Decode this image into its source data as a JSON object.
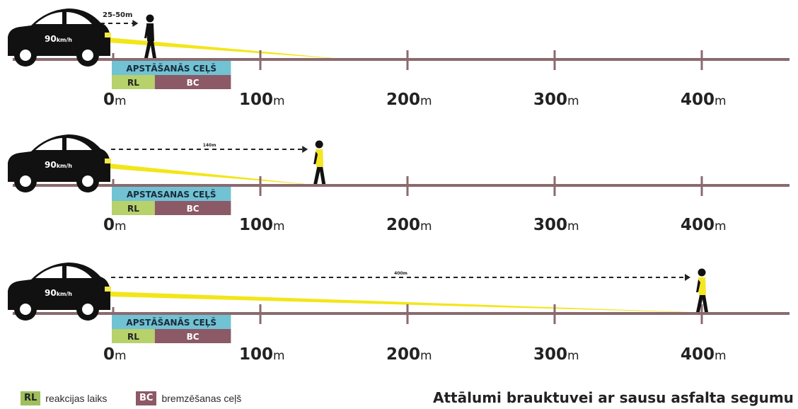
{
  "scenarios": [
    {
      "speed_value": "90",
      "speed_unit": "km/h",
      "visibility_label": "25-50m",
      "visibility_m": [
        25,
        50
      ],
      "pedestrian_at_m": 25,
      "pedestrian_vest": false,
      "stop_label": "APSTĀŠANĀS CEĻŠ",
      "rl_label": "RL",
      "bc_label": "BC"
    },
    {
      "speed_value": "90",
      "speed_unit": "km/h",
      "visibility_label": "140m",
      "visibility_m": 140,
      "pedestrian_at_m": 140,
      "pedestrian_vest": true,
      "stop_label": "APSTASANAS CEĻŠ",
      "rl_label": "RL",
      "bc_label": "BC"
    },
    {
      "speed_value": "90",
      "speed_unit": "km/h",
      "visibility_label": "400m",
      "visibility_m": 400,
      "pedestrian_at_m": 400,
      "pedestrian_vest": true,
      "stop_label": "APSTĀŠANĀS CEĻŠ",
      "rl_label": "RL",
      "bc_label": "BC"
    }
  ],
  "distance_scale": [
    {
      "num": "0",
      "unit": "m"
    },
    {
      "num": "100",
      "unit": "m"
    },
    {
      "num": "200",
      "unit": "m"
    },
    {
      "num": "300",
      "unit": "m"
    },
    {
      "num": "400",
      "unit": "m"
    }
  ],
  "stopping_distance": {
    "reaction_m": 25,
    "braking_m": 55
  },
  "legend": [
    {
      "abbr": "RL",
      "text": "reakcijas laiks",
      "color": "#9fbf5c"
    },
    {
      "abbr": "BC",
      "text": "bremzēšanas ceļš",
      "color": "#8b5a66"
    }
  ],
  "caption": "Attālumi brauktuvei ar sausu asfalta segumu",
  "colors": {
    "road": "#8a6a6e",
    "beam": "#f2e619",
    "car": "#111111",
    "stop_bar": "#71c2d3",
    "rl": "#b7d16b",
    "bc": "#8b5a66",
    "vest": "#f5e623"
  }
}
